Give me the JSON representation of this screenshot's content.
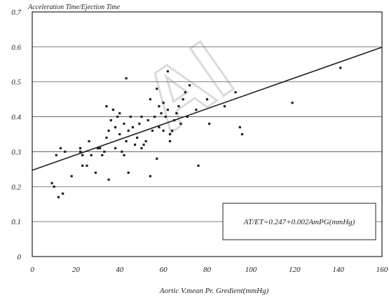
{
  "chart_data": {
    "type": "scatter",
    "title": "",
    "ylabel": "Acceleration Time/Ejection Time",
    "xlabel": "Aortic V.mean Pr. Gredient(mmHg)",
    "xlim": [
      0,
      160
    ],
    "ylim": [
      0,
      0.7
    ],
    "x_ticks": [
      "0",
      "20",
      "40",
      "60",
      "80",
      "100",
      "120",
      "140",
      "160"
    ],
    "y_ticks": [
      "0",
      "0.1",
      "0.2",
      "0.3",
      "0.4",
      "0.5",
      "0.6",
      "0.7"
    ],
    "grid": "horizontal",
    "regression": {
      "intercept": 0.247,
      "slope": 0.0022,
      "equation": "AT/ET=0.247+0.002AmPG(mmHg)"
    },
    "points": [
      [
        9,
        0.21
      ],
      [
        10,
        0.2
      ],
      [
        11,
        0.29
      ],
      [
        12,
        0.17
      ],
      [
        13,
        0.31
      ],
      [
        14,
        0.18
      ],
      [
        15,
        0.3
      ],
      [
        18,
        0.23
      ],
      [
        22,
        0.31
      ],
      [
        22,
        0.3
      ],
      [
        23,
        0.26
      ],
      [
        23,
        0.29
      ],
      [
        25,
        0.26
      ],
      [
        26,
        0.33
      ],
      [
        27,
        0.29
      ],
      [
        29,
        0.24
      ],
      [
        30,
        0.31
      ],
      [
        31,
        0.31
      ],
      [
        32,
        0.29
      ],
      [
        33,
        0.3
      ],
      [
        34,
        0.34
      ],
      [
        34,
        0.43
      ],
      [
        35,
        0.22
      ],
      [
        35,
        0.36
      ],
      [
        36,
        0.39
      ],
      [
        37,
        0.42
      ],
      [
        38,
        0.31
      ],
      [
        38,
        0.37
      ],
      [
        39,
        0.4
      ],
      [
        40,
        0.35
      ],
      [
        40,
        0.41
      ],
      [
        41,
        0.3
      ],
      [
        42,
        0.29
      ],
      [
        42,
        0.38
      ],
      [
        43,
        0.33
      ],
      [
        43,
        0.51
      ],
      [
        44,
        0.24
      ],
      [
        44,
        0.36
      ],
      [
        45,
        0.4
      ],
      [
        46,
        0.37
      ],
      [
        47,
        0.32
      ],
      [
        48,
        0.34
      ],
      [
        49,
        0.38
      ],
      [
        50,
        0.31
      ],
      [
        50,
        0.4
      ],
      [
        51,
        0.32
      ],
      [
        52,
        0.33
      ],
      [
        53,
        0.39
      ],
      [
        54,
        0.23
      ],
      [
        54,
        0.45
      ],
      [
        55,
        0.36
      ],
      [
        56,
        0.4
      ],
      [
        57,
        0.48
      ],
      [
        57,
        0.28
      ],
      [
        58,
        0.43
      ],
      [
        58,
        0.37
      ],
      [
        59,
        0.41
      ],
      [
        60,
        0.44
      ],
      [
        60,
        0.36
      ],
      [
        61,
        0.4
      ],
      [
        62,
        0.53
      ],
      [
        62,
        0.42
      ],
      [
        63,
        0.35
      ],
      [
        63,
        0.33
      ],
      [
        64,
        0.36
      ],
      [
        65,
        0.39
      ],
      [
        66,
        0.41
      ],
      [
        67,
        0.43
      ],
      [
        68,
        0.38
      ],
      [
        69,
        0.45
      ],
      [
        70,
        0.47
      ],
      [
        71,
        0.4
      ],
      [
        72,
        0.49
      ],
      [
        75,
        0.42
      ],
      [
        76,
        0.26
      ],
      [
        80,
        0.45
      ],
      [
        81,
        0.38
      ],
      [
        88,
        0.43
      ],
      [
        93,
        0.47
      ],
      [
        95,
        0.37
      ],
      [
        96,
        0.35
      ],
      [
        119,
        0.44
      ],
      [
        141,
        0.54
      ]
    ]
  },
  "watermark": "AI"
}
